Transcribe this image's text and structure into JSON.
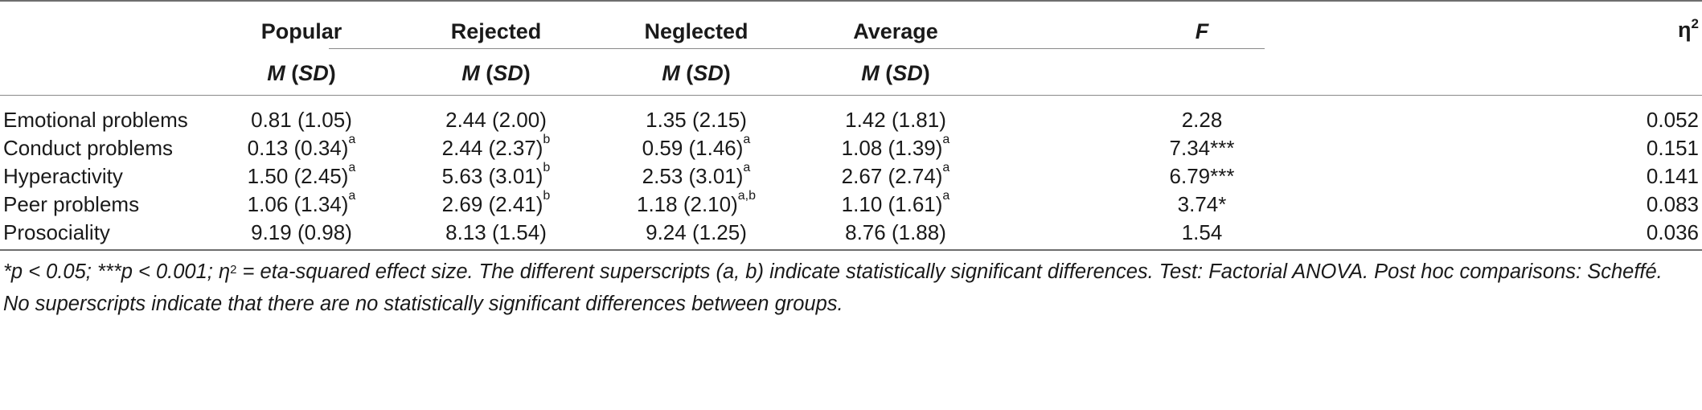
{
  "table": {
    "group_headers": [
      "Popular",
      "Rejected",
      "Neglected",
      "Average"
    ],
    "sub_header": {
      "m": "M",
      "sd": "SD"
    },
    "f_header": "F",
    "eta_header": {
      "base": "η",
      "sup": "2"
    },
    "rows": [
      {
        "label": "Emotional problems",
        "cells": [
          {
            "v": "0.81 (1.05)",
            "s": ""
          },
          {
            "v": "2.44 (2.00)",
            "s": ""
          },
          {
            "v": "1.35 (2.15)",
            "s": ""
          },
          {
            "v": "1.42 (1.81)",
            "s": ""
          }
        ],
        "f": "2.28",
        "eta": "0.052"
      },
      {
        "label": "Conduct problems",
        "cells": [
          {
            "v": "0.13 (0.34)",
            "s": "a"
          },
          {
            "v": "2.44 (2.37)",
            "s": "b"
          },
          {
            "v": "0.59 (1.46)",
            "s": "a"
          },
          {
            "v": "1.08 (1.39)",
            "s": "a"
          }
        ],
        "f": "7.34***",
        "eta": "0.151"
      },
      {
        "label": "Hyperactivity",
        "cells": [
          {
            "v": "1.50 (2.45)",
            "s": "a"
          },
          {
            "v": "5.63 (3.01)",
            "s": "b"
          },
          {
            "v": "2.53 (3.01)",
            "s": "a"
          },
          {
            "v": "2.67 (2.74)",
            "s": "a"
          }
        ],
        "f": "6.79***",
        "eta": "0.141"
      },
      {
        "label": "Peer problems",
        "cells": [
          {
            "v": "1.06 (1.34)",
            "s": "a"
          },
          {
            "v": "2.69 (2.41)",
            "s": "b"
          },
          {
            "v": "1.18 (2.10)",
            "s": "a,b"
          },
          {
            "v": "1.10 (1.61)",
            "s": "a"
          }
        ],
        "f": "3.74*",
        "eta": "0.083"
      },
      {
        "label": "Prosociality",
        "cells": [
          {
            "v": "9.19 (0.98)",
            "s": ""
          },
          {
            "v": "8.13 (1.54)",
            "s": ""
          },
          {
            "v": "9.24 (1.25)",
            "s": ""
          },
          {
            "v": "8.76 (1.88)",
            "s": ""
          }
        ],
        "f": "1.54",
        "eta": "0.036"
      }
    ]
  },
  "footnote": {
    "part1": "*p < 0.05; ***p < 0.001; η",
    "sup": "2",
    "part2": " = eta-squared effect size. The different superscripts (a, b) indicate statistically significant differences. Test: Factorial ANOVA. Post hoc comparisons: Scheffé. No superscripts indicate that there are no statistically significant differences between groups."
  }
}
